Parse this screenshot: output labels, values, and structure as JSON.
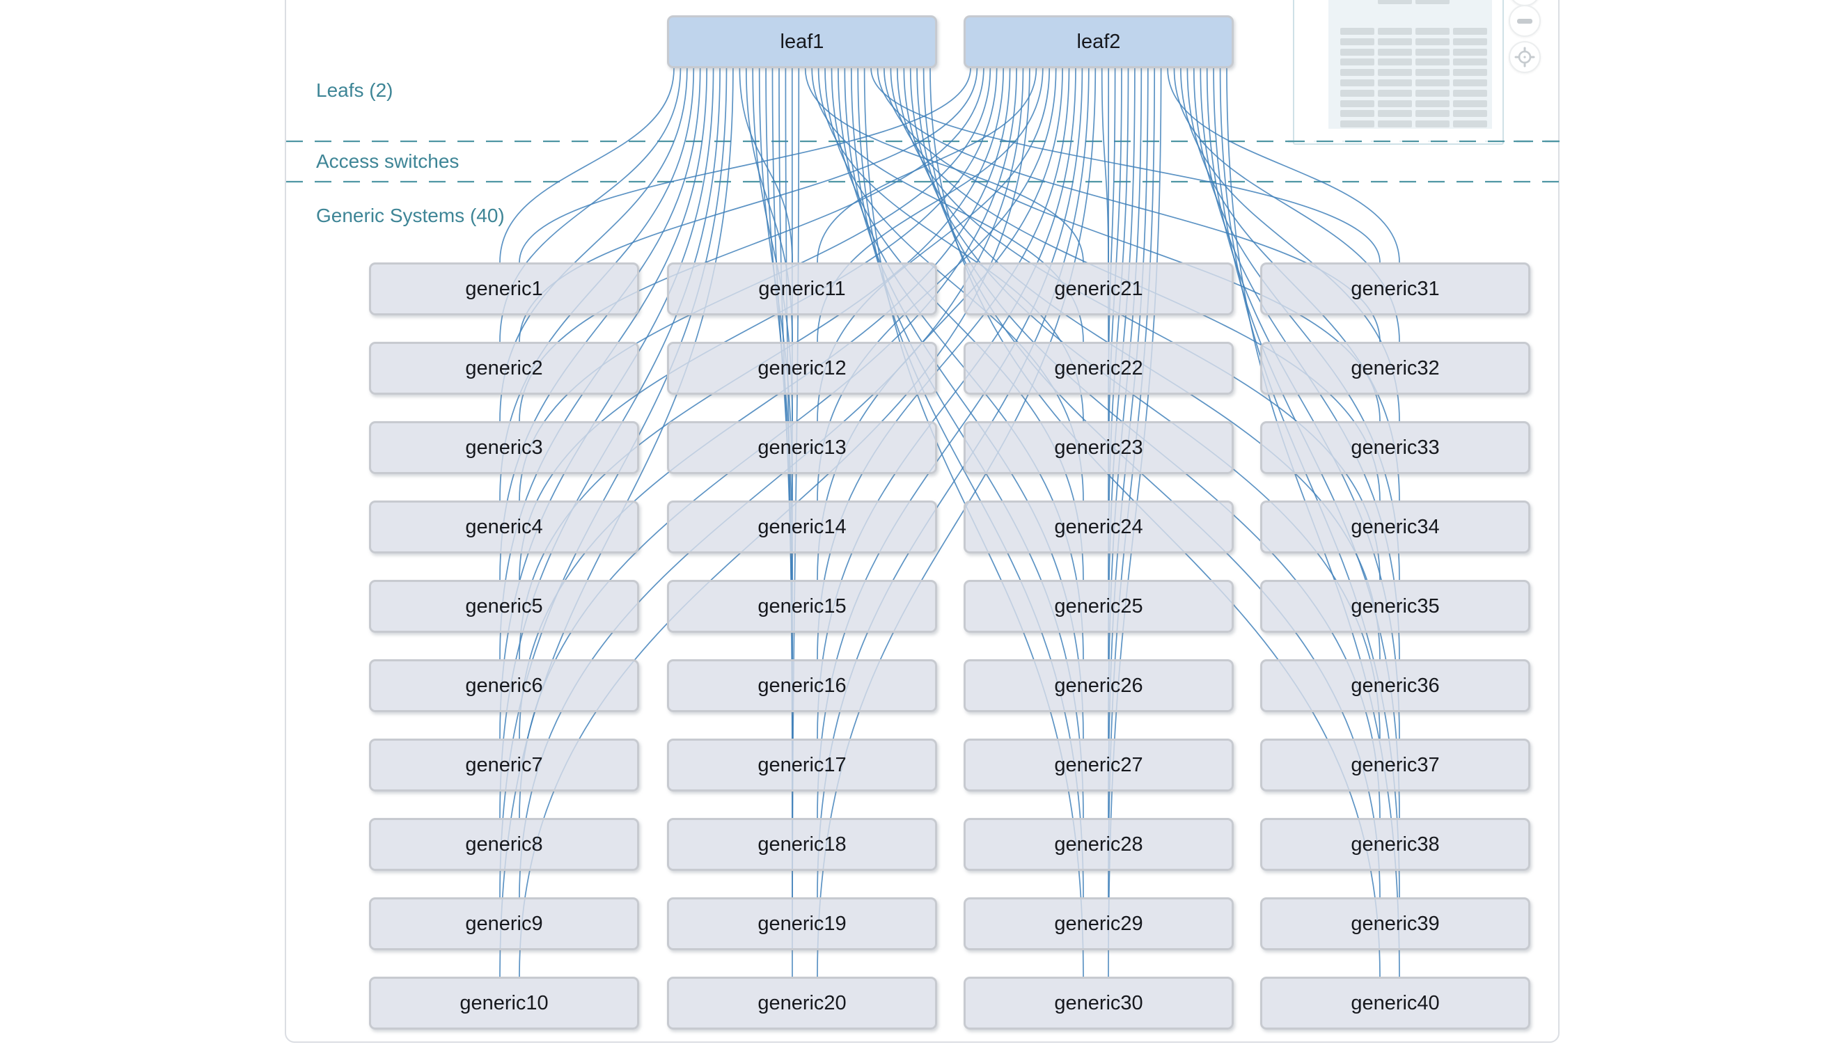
{
  "canvas": {
    "tier_labels": {
      "leafs": "Leafs (2)",
      "access": "Access switches",
      "generics": "Generic Systems (40)"
    },
    "leaf_nodes": [
      "leaf1",
      "leaf2"
    ],
    "generic_nodes": [
      "generic1",
      "generic2",
      "generic3",
      "generic4",
      "generic5",
      "generic6",
      "generic7",
      "generic8",
      "generic9",
      "generic10",
      "generic11",
      "generic12",
      "generic13",
      "generic14",
      "generic15",
      "generic16",
      "generic17",
      "generic18",
      "generic19",
      "generic20",
      "generic21",
      "generic22",
      "generic23",
      "generic24",
      "generic25",
      "generic26",
      "generic27",
      "generic28",
      "generic29",
      "generic30",
      "generic31",
      "generic32",
      "generic33",
      "generic34",
      "generic35",
      "generic36",
      "generic37",
      "generic38",
      "generic39",
      "generic40"
    ],
    "links": [
      "leaf1>generic1",
      "leaf1>generic2",
      "leaf1>generic3",
      "leaf1>generic4",
      "leaf1>generic5",
      "leaf1>generic6",
      "leaf1>generic7",
      "leaf1>generic8",
      "leaf1>generic9",
      "leaf1>generic10",
      "leaf1>generic11",
      "leaf1>generic12",
      "leaf1>generic13",
      "leaf1>generic14",
      "leaf1>generic15",
      "leaf1>generic16",
      "leaf1>generic17",
      "leaf1>generic18",
      "leaf1>generic19",
      "leaf1>generic20",
      "leaf1>generic21",
      "leaf1>generic22",
      "leaf1>generic23",
      "leaf1>generic24",
      "leaf1>generic25",
      "leaf1>generic26",
      "leaf1>generic27",
      "leaf1>generic28",
      "leaf1>generic29",
      "leaf1>generic30",
      "leaf1>generic31",
      "leaf1>generic32",
      "leaf1>generic33",
      "leaf1>generic34",
      "leaf1>generic35",
      "leaf1>generic36",
      "leaf1>generic37",
      "leaf1>generic38",
      "leaf1>generic39",
      "leaf1>generic40",
      "leaf2>generic1",
      "leaf2>generic2",
      "leaf2>generic3",
      "leaf2>generic4",
      "leaf2>generic5",
      "leaf2>generic6",
      "leaf2>generic7",
      "leaf2>generic8",
      "leaf2>generic9",
      "leaf2>generic10",
      "leaf2>generic11",
      "leaf2>generic12",
      "leaf2>generic13",
      "leaf2>generic14",
      "leaf2>generic15",
      "leaf2>generic16",
      "leaf2>generic17",
      "leaf2>generic18",
      "leaf2>generic19",
      "leaf2>generic20",
      "leaf2>generic21",
      "leaf2>generic22",
      "leaf2>generic23",
      "leaf2>generic24",
      "leaf2>generic25",
      "leaf2>generic26",
      "leaf2>generic27",
      "leaf2>generic28",
      "leaf2>generic29",
      "leaf2>generic30",
      "leaf2>generic31",
      "leaf2>generic32",
      "leaf2>generic33",
      "leaf2>generic34",
      "leaf2>generic35",
      "leaf2>generic36",
      "leaf2>generic37",
      "leaf2>generic38",
      "leaf2>generic39",
      "leaf2>generic40"
    ]
  },
  "controls": {
    "zoom_out_icon": "minus",
    "locate_icon": "crosshair-target"
  },
  "minimap": {
    "columns": 4,
    "rows": 10,
    "leaf_bars": 2
  },
  "colors": {
    "link": "#4080ba",
    "leaf_fill": "#bfd4ec",
    "generic_fill": "#dbdfe8",
    "node_border": "#c6c9cf",
    "tier_label": "#3e8596",
    "tier_divider": "#4f96a4",
    "panel_border": "#dbdee3",
    "minimap_bar": "#d4dbde"
  }
}
